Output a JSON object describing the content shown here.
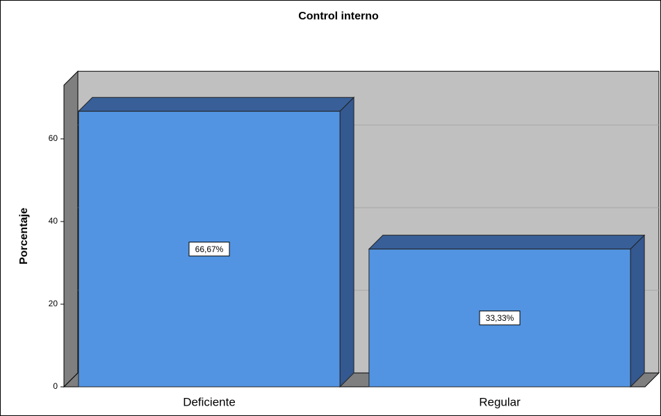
{
  "chart_data": {
    "type": "bar3d",
    "title": "Control interno",
    "y_label": "Porcentaje",
    "categories": [
      "Deficiente",
      "Regular"
    ],
    "values": [
      66.67,
      33.33
    ],
    "value_labels": [
      "66,67%",
      "33,33%"
    ],
    "color": "#5294e2",
    "ylim": [
      0,
      73
    ],
    "yticks": [
      0,
      20,
      40,
      60
    ],
    "grid": true
  }
}
